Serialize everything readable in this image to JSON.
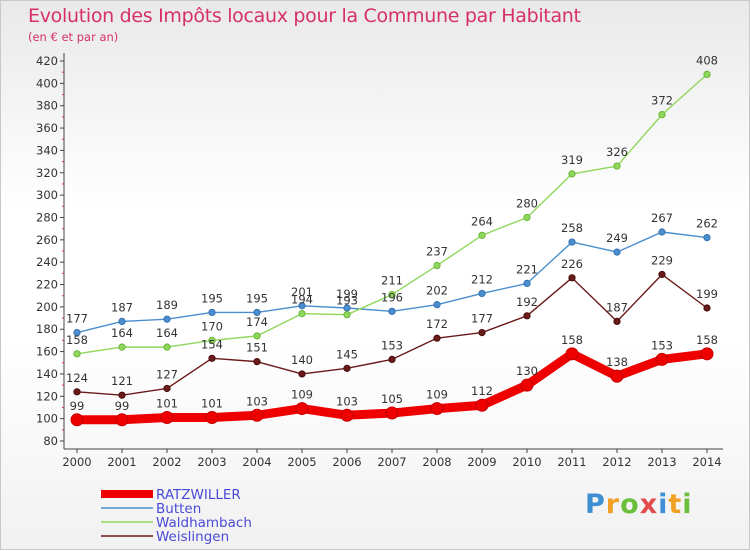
{
  "chart_data": {
    "type": "line",
    "title": "Evolution des Impôts locaux pour la Commune par Habitant",
    "subtitle": "(en € et par an)",
    "x": [
      "2000",
      "2001",
      "2002",
      "2003",
      "2004",
      "2005",
      "2006",
      "2007",
      "2008",
      "2009",
      "2010",
      "2011",
      "2012",
      "2013",
      "2014"
    ],
    "ylim": [
      80,
      420
    ],
    "yticks": [
      80,
      100,
      120,
      140,
      160,
      180,
      200,
      220,
      240,
      260,
      280,
      300,
      320,
      340,
      360,
      380,
      400,
      420
    ],
    "grid": false,
    "legend_position": "bottom-left",
    "series": [
      {
        "name": "RATZWILLER",
        "color": "#ee0000",
        "values": [
          99,
          99,
          101,
          101,
          103,
          109,
          103,
          105,
          109,
          112,
          130,
          158,
          138,
          153,
          158
        ]
      },
      {
        "name": "Butten",
        "color": "#4a8ed0",
        "values": [
          177,
          187,
          189,
          195,
          195,
          201,
          199,
          196,
          202,
          212,
          221,
          258,
          249,
          267,
          262
        ]
      },
      {
        "name": "Waldhambach",
        "color": "#8fd75c",
        "values": [
          158,
          164,
          164,
          170,
          174,
          194,
          193,
          211,
          237,
          264,
          280,
          319,
          326,
          372,
          408
        ]
      },
      {
        "name": "Weislingen",
        "color": "#6b1a1a",
        "values": [
          124,
          121,
          127,
          154,
          151,
          140,
          145,
          153,
          172,
          177,
          192,
          226,
          187,
          229,
          199
        ]
      }
    ]
  },
  "logo": {
    "letters": [
      "P",
      "r",
      "o",
      "x",
      "i",
      "t",
      "i"
    ]
  }
}
